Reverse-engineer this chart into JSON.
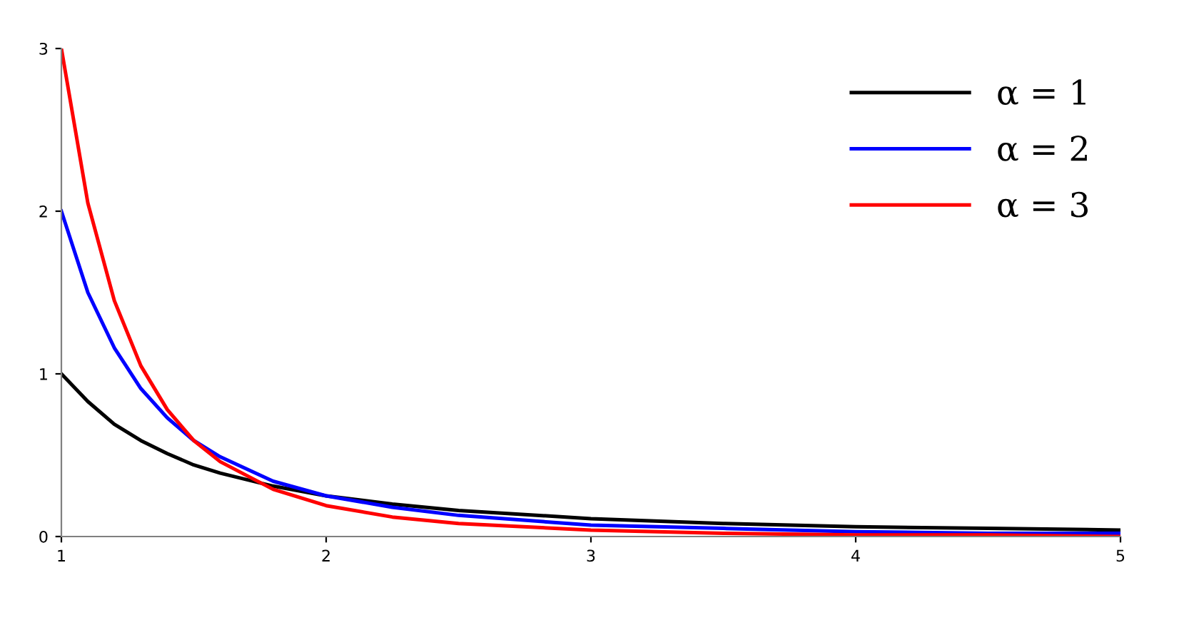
{
  "chart_data": {
    "type": "line",
    "x": [
      1,
      1.1,
      1.2,
      1.3,
      1.4,
      1.5,
      1.6,
      1.8,
      2,
      2.25,
      2.5,
      3,
      3.5,
      4,
      4.5,
      5
    ],
    "series": [
      {
        "name": "α = 1",
        "color": "#000000",
        "values": [
          1,
          0.83,
          0.69,
          0.59,
          0.51,
          0.44,
          0.39,
          0.31,
          0.25,
          0.2,
          0.16,
          0.11,
          0.08,
          0.06,
          0.05,
          0.04
        ]
      },
      {
        "name": "α = 2",
        "color": "#0000ff",
        "values": [
          2,
          1.5,
          1.16,
          0.91,
          0.73,
          0.59,
          0.49,
          0.34,
          0.25,
          0.18,
          0.13,
          0.07,
          0.05,
          0.03,
          0.02,
          0.02
        ]
      },
      {
        "name": "α = 3",
        "color": "#ff0000",
        "values": [
          3,
          2.05,
          1.45,
          1.05,
          0.78,
          0.59,
          0.46,
          0.29,
          0.19,
          0.12,
          0.08,
          0.04,
          0.02,
          0.01,
          0.01,
          0
        ]
      }
    ],
    "xlim": [
      1,
      5
    ],
    "xticks": [
      1,
      2,
      3,
      4,
      5
    ],
    "ylim": [
      0,
      3
    ],
    "yticks": [
      0,
      1,
      2,
      3
    ],
    "grid": false,
    "legend": "top right",
    "marker": "none",
    "line_style": "solid"
  }
}
